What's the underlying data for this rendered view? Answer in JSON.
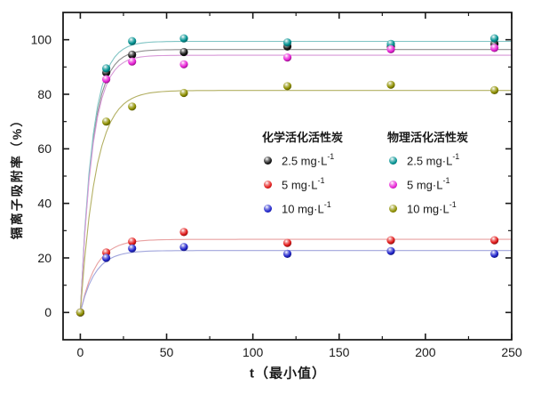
{
  "chart_data": {
    "type": "scatter",
    "title": "",
    "xlabel": "t（最小值）",
    "ylabel": "镉离子吸附率（%）",
    "xlim": [
      -10,
      250
    ],
    "ylim": [
      -10,
      110
    ],
    "x_ticks": [
      0,
      50,
      100,
      150,
      200,
      250
    ],
    "x_minor_ticks": [
      25,
      75,
      125,
      175,
      225
    ],
    "y_ticks": [
      0,
      20,
      40,
      60,
      80,
      100
    ],
    "y_minor_ticks": [
      10,
      30,
      50,
      70,
      90
    ],
    "grid": false,
    "legend": {
      "position": "inside-center-right",
      "group1_title": "化学活化活性炭",
      "group2_title": "物理活化活性炭"
    },
    "x": [
      0,
      15,
      30,
      60,
      120,
      180,
      240
    ],
    "series": [
      {
        "name": "化学活化活性炭 2.5 mg·L⁻¹",
        "label": "2.5 mg·L",
        "sup": "-1",
        "color": "#141414",
        "line_color": "#8f8f8f",
        "values": [
          0,
          88,
          94.5,
          95.5,
          97.5,
          97.5,
          98.5
        ],
        "fit_asymptote": 96.4,
        "fit_tau": 7
      },
      {
        "name": "化学活化活性炭 5 mg·L⁻¹",
        "label": "5 mg·L",
        "sup": "-1",
        "color": "#e31b1b",
        "line_color": "#e8a0a0",
        "values": [
          0,
          22,
          26,
          29.5,
          25.5,
          26.5,
          26.5
        ],
        "fit_asymptote": 26.8,
        "fit_tau": 9
      },
      {
        "name": "化学活化活性炭 10 mg·L⁻¹",
        "label": "10 mg·L",
        "sup": "-1",
        "color": "#2125cc",
        "line_color": "#a0a5dc",
        "values": [
          0,
          20,
          23.5,
          24,
          21.5,
          22.5,
          21.5
        ],
        "fit_asymptote": 22.7,
        "fit_tau": 8.5
      },
      {
        "name": "物理活化活性炭 2.5 mg·L⁻¹",
        "label": "2.5 mg·L",
        "sup": "-1",
        "color": "#009191",
        "line_color": "#7fc4c4",
        "values": [
          0,
          89.5,
          99.5,
          100.5,
          99,
          98.5,
          100.5
        ],
        "fit_asymptote": 99.4,
        "fit_tau": 7
      },
      {
        "name": "物理活化活性炭 5 mg·L⁻¹",
        "label": "5 mg·L",
        "sup": "-1",
        "color": "#e822d6",
        "line_color": "#d898d8",
        "values": [
          0,
          85.5,
          92,
          91,
          93.5,
          96.5,
          97
        ],
        "fit_asymptote": 94.3,
        "fit_tau": 7
      },
      {
        "name": "物理活化活性炭 10 mg·L⁻¹",
        "label": "10 mg·L",
        "sup": "-1",
        "color": "#8f9000",
        "line_color": "#b3b063",
        "values": [
          0,
          70,
          75.5,
          80.5,
          83,
          83.5,
          81.5
        ],
        "fit_asymptote": 81.4,
        "fit_tau": 9
      }
    ]
  }
}
